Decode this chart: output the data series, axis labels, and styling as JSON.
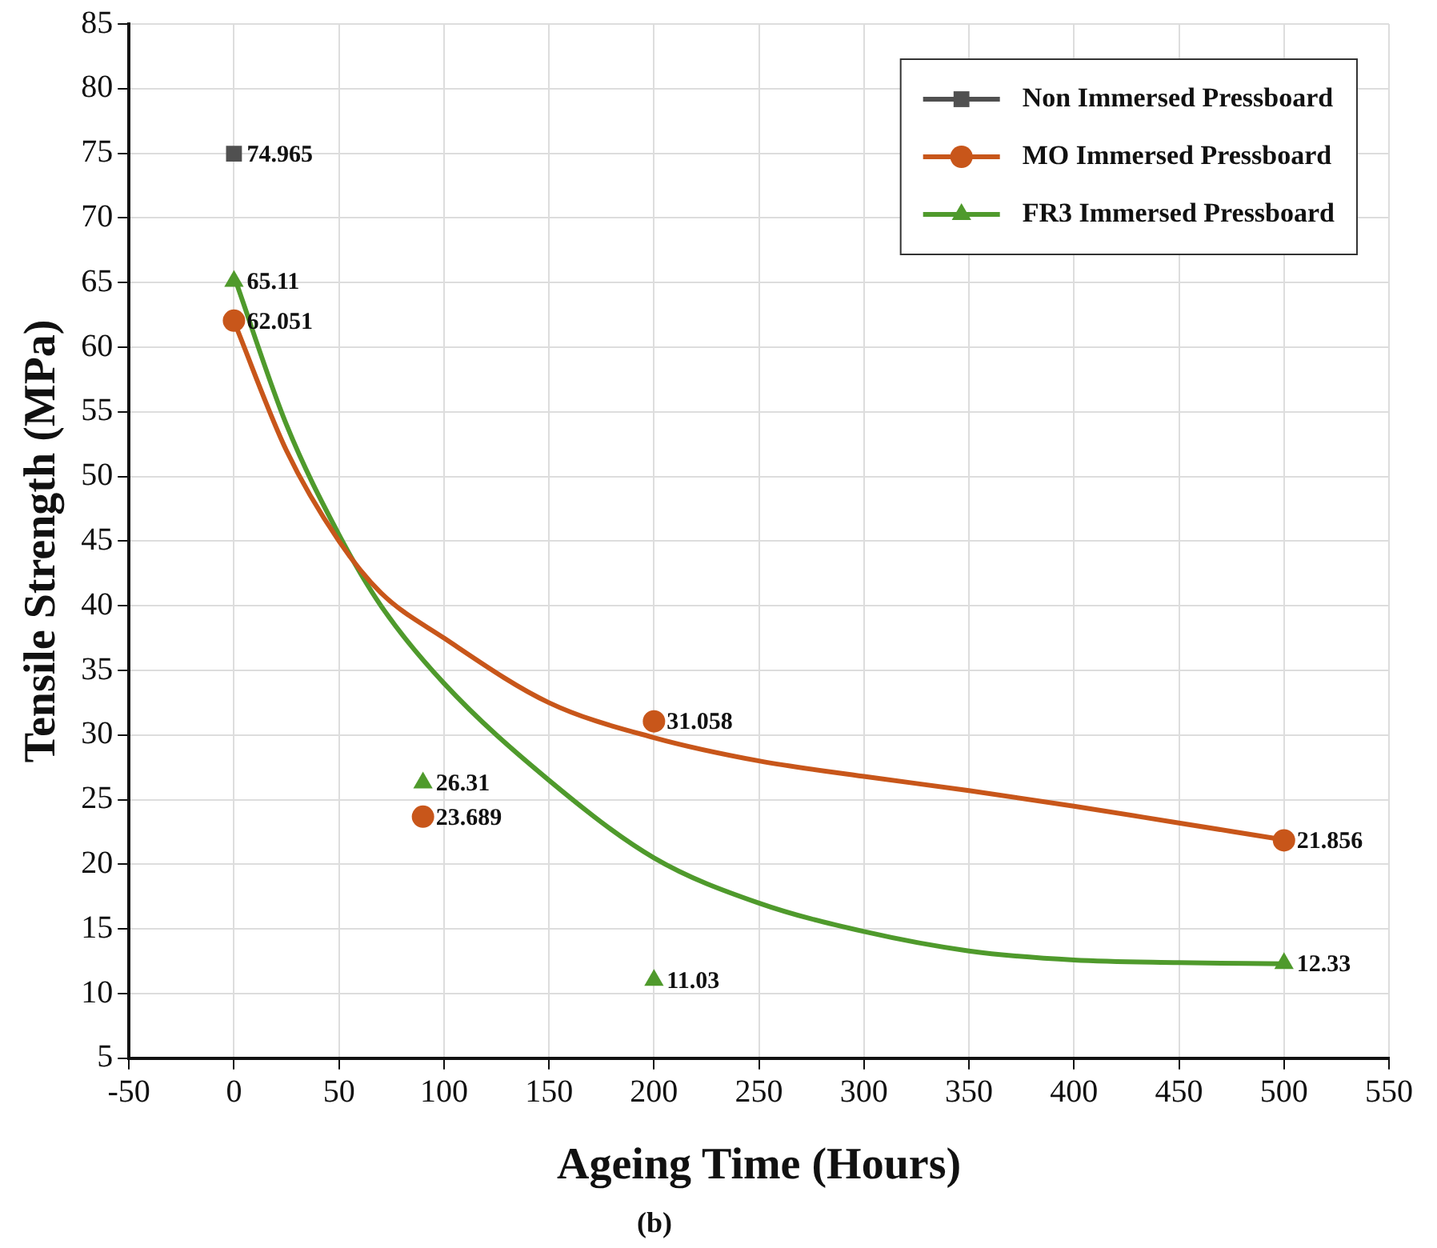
{
  "chart_data": {
    "type": "scatter",
    "xlabel": "Ageing Time (Hours)",
    "ylabel": "Tensile Strength (MPa)",
    "xlim": [
      -50,
      550
    ],
    "xticks": [
      -50,
      0,
      50,
      100,
      150,
      200,
      250,
      300,
      350,
      400,
      450,
      500,
      550
    ],
    "ylim": [
      5,
      85
    ],
    "yticks": [
      5,
      10,
      15,
      20,
      25,
      30,
      35,
      40,
      45,
      50,
      55,
      60,
      65,
      70,
      75,
      80,
      85
    ],
    "grid": true,
    "legend": "top right",
    "annotations": [
      "(b)"
    ],
    "series": [
      {
        "name": "Non Immersed Pressboard",
        "marker": "square",
        "color": "#505050",
        "x": [
          0
        ],
        "values": [
          74.965
        ],
        "value_labels": [
          "74.965"
        ]
      },
      {
        "name": "MO Immersed Pressboard",
        "marker": "circle",
        "color": "#c8561a",
        "x": [
          0,
          90,
          200,
          500
        ],
        "values": [
          62.051,
          23.689,
          31.058,
          21.856
        ],
        "value_labels": [
          "62.051",
          "23.689",
          "31.058",
          "21.856"
        ]
      },
      {
        "name": "FR3 Immersed Pressboard",
        "marker": "triangle",
        "color": "#4f9a2c",
        "x": [
          0,
          90,
          200,
          500
        ],
        "values": [
          65.11,
          26.31,
          11.03,
          12.33
        ],
        "value_labels": [
          "65.11",
          "26.31",
          "11.03",
          "12.33"
        ]
      },
      {
        "type": "line",
        "marker": "none",
        "color": "#c8561a",
        "x": [
          0,
          25,
          50,
          70,
          100,
          150,
          200,
          250,
          300,
          350,
          400,
          450,
          500
        ],
        "values": [
          62,
          52,
          45,
          41,
          37.5,
          32.5,
          29.8,
          28,
          26.8,
          25.7,
          24.5,
          23.2,
          21.9
        ]
      },
      {
        "type": "line",
        "marker": "none",
        "color": "#4f9a2c",
        "x": [
          0,
          25,
          50,
          70,
          100,
          150,
          200,
          250,
          300,
          350,
          400,
          450,
          500
        ],
        "values": [
          65.5,
          54,
          45.5,
          40,
          34,
          26.5,
          20.5,
          17,
          14.8,
          13.3,
          12.6,
          12.4,
          12.3
        ]
      }
    ]
  }
}
